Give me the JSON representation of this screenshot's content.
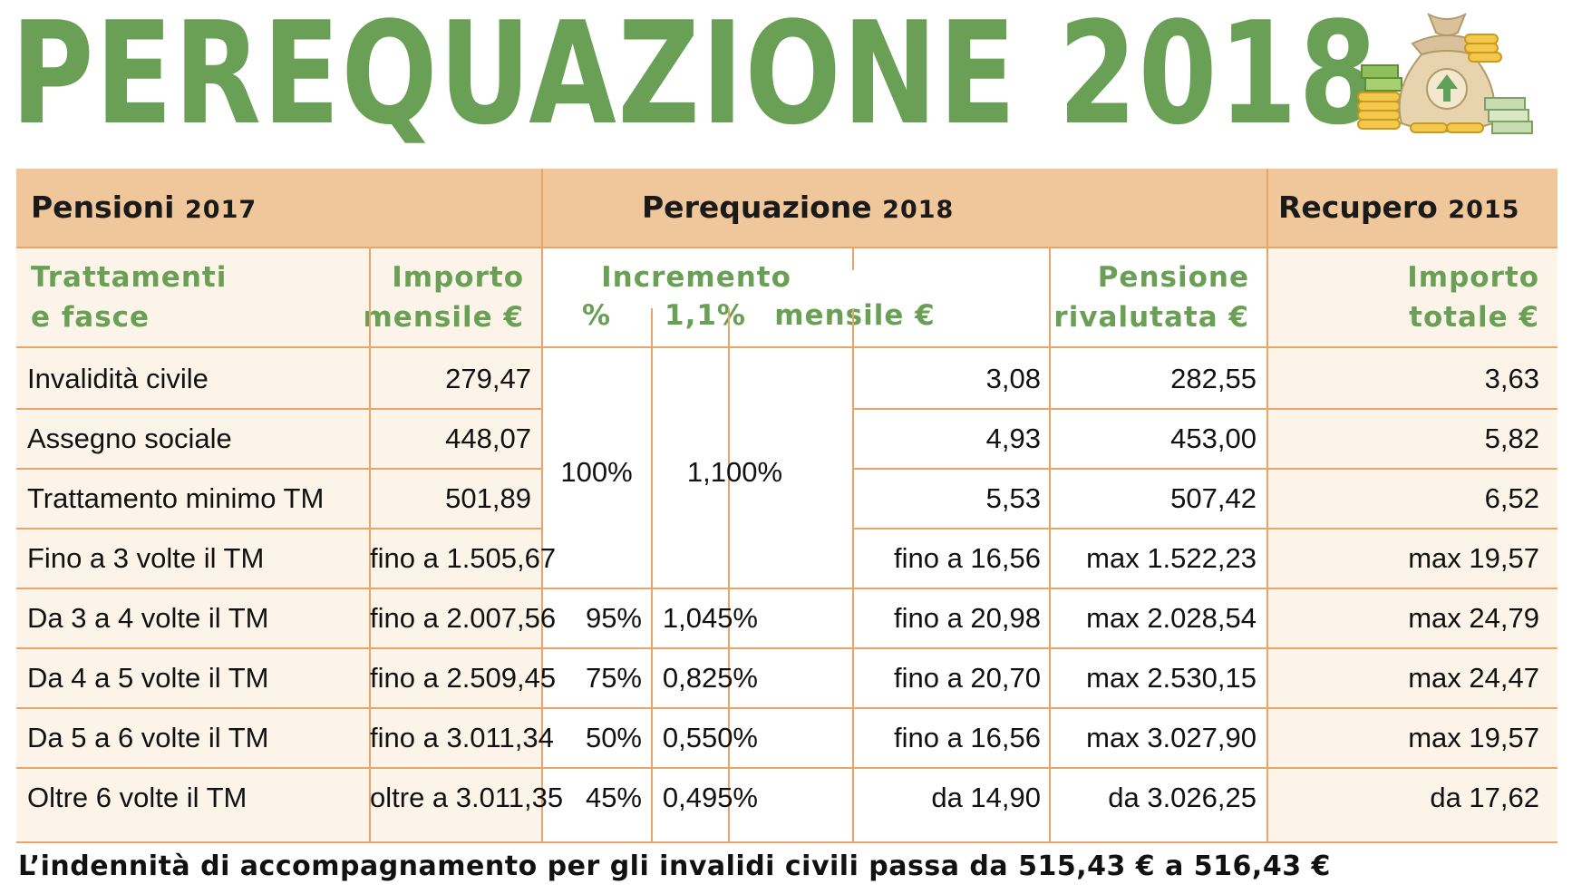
{
  "title": "PEREQUAZIONE 2018",
  "sections": {
    "pensioni": {
      "label": "Pensioni",
      "year": "2017"
    },
    "perequazione": {
      "label": "Perequazione",
      "year": "2018"
    },
    "recupero": {
      "label": "Recupero",
      "year": "2015"
    }
  },
  "columns": {
    "trattamenti_1": "Trattamenti",
    "trattamenti_2": "e fasce",
    "importo_1": "Importo",
    "importo_2": "mensile €",
    "incremento": "Incremento",
    "pct": "%",
    "rate": "1,1%",
    "mensile": "mensile €",
    "pensione_1": "Pensione",
    "pensione_2": "rivalutata €",
    "totale_1": "Importo",
    "totale_2": "totale €"
  },
  "merged": {
    "pct": "100%",
    "rate": "1,100%"
  },
  "rows": [
    {
      "fascia": "Invalidità civile",
      "importo": "279,47",
      "mensile": "3,08",
      "rivalutata": "282,55",
      "recupero": "3,63"
    },
    {
      "fascia": "Assegno sociale",
      "importo": "448,07",
      "mensile": "4,93",
      "rivalutata": "453,00",
      "recupero": "5,82"
    },
    {
      "fascia": "Trattamento minimo TM",
      "importo": "501,89",
      "mensile": "5,53",
      "rivalutata": "507,42",
      "recupero": "6,52"
    },
    {
      "fascia": "Fino a 3 volte il TM",
      "importo": "fino a 1.505,67",
      "mensile": "fino a 16,56",
      "rivalutata": "max 1.522,23",
      "recupero": "max 19,57"
    },
    {
      "fascia": "Da 3 a 4 volte il TM",
      "importo": "fino a 2.007,56",
      "pct": "95%",
      "rate": "1,045%",
      "mensile": "fino a 20,98",
      "rivalutata": "max 2.028,54",
      "recupero": "max 24,79"
    },
    {
      "fascia": "Da 4 a 5 volte il TM",
      "importo": "fino a 2.509,45",
      "pct": "75%",
      "rate": "0,825%",
      "mensile": "fino a 20,70",
      "rivalutata": "max 2.530,15",
      "recupero": "max 24,47"
    },
    {
      "fascia": "Da 5 a 6 volte il TM",
      "importo": "fino a 3.011,34",
      "pct": "50%",
      "rate": "0,550%",
      "mensile": "fino a 16,56",
      "rivalutata": "max 3.027,90",
      "recupero": "max 19,57"
    },
    {
      "fascia": "Oltre 6 volte il TM",
      "importo": "oltre a 3.011,35",
      "pct": "45%",
      "rate": "0,495%",
      "mensile": "da 14,90",
      "rivalutata": "da 3.026,25",
      "recupero": "da 17,62"
    }
  ],
  "footer": "L’indennità di accompagnamento per gli invalidi civili passa da 515,43 € a 516,43 €",
  "colors": {
    "green": "#6a9f56",
    "header_band": "#f0c79a",
    "panel": "#fdf4e9",
    "rule": "#e9a46a"
  }
}
